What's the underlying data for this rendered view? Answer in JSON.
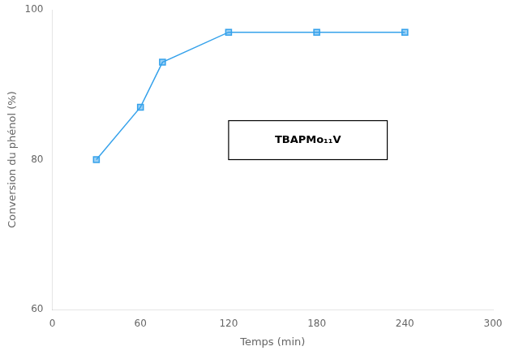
{
  "chart_data": {
    "type": "line",
    "x": [
      30,
      60,
      75,
      120,
      180,
      240
    ],
    "values": [
      80.0,
      87.0,
      93.0,
      97.0,
      97.0,
      97.0
    ],
    "xlim": [
      0,
      300
    ],
    "ylim": [
      60,
      100
    ],
    "xticks": [
      0,
      60,
      120,
      180,
      240,
      300
    ],
    "yticks": [
      60,
      80,
      100
    ],
    "xlabel": "Temps (min)",
    "ylabel": "Conversion du phénol (%)",
    "marker": "square",
    "grid": false,
    "annotation": "TBAPMo₁₁V"
  }
}
